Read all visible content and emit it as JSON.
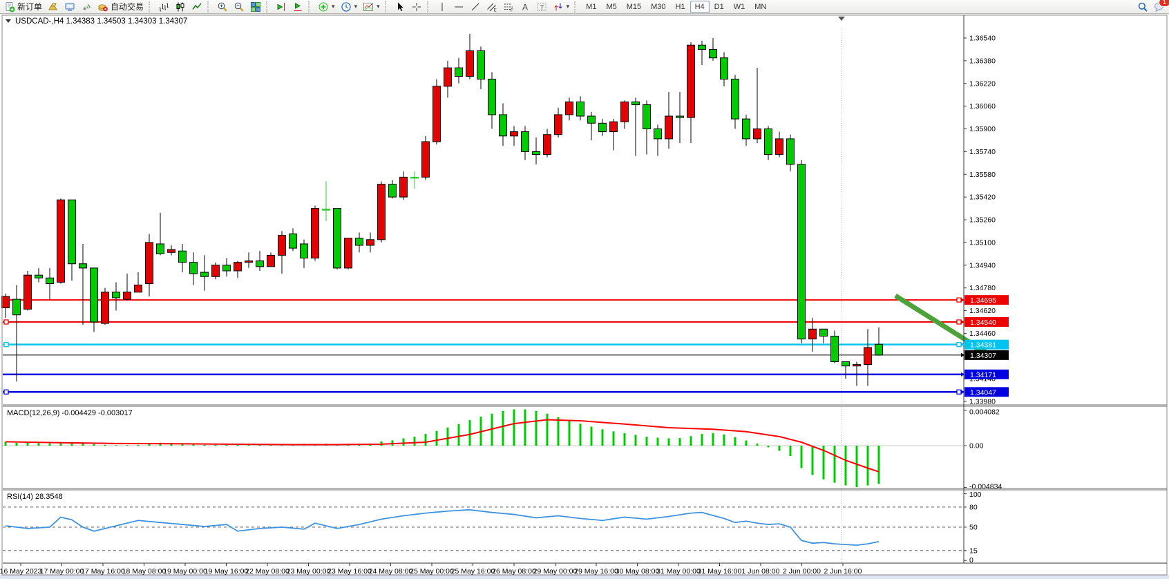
{
  "toolbar": {
    "items": [
      {
        "icon": "new-order",
        "label": "新订单"
      },
      {
        "icon": "gold-ingot"
      },
      {
        "icon": "terminal"
      },
      {
        "icon": "signal"
      },
      {
        "icon": "autotrade",
        "label": "自动交易"
      },
      {
        "sep": true
      },
      {
        "icon": "bar-chart"
      },
      {
        "icon": "candlestick-chart"
      },
      {
        "icon": "line-chart"
      },
      {
        "sep": true
      },
      {
        "icon": "zoom-in"
      },
      {
        "icon": "zoom-out"
      },
      {
        "icon": "tile-windows"
      },
      {
        "sep": true
      },
      {
        "icon": "chart-shift"
      },
      {
        "icon": "auto-scroll"
      },
      {
        "sep": true
      },
      {
        "icon": "indicators",
        "caret": true
      },
      {
        "icon": "periods",
        "caret": true
      },
      {
        "icon": "templates",
        "caret": true
      },
      {
        "sep": true
      },
      {
        "icon": "cursor"
      },
      {
        "icon": "crosshair"
      },
      {
        "sep": true
      },
      {
        "icon": "vertical-line"
      },
      {
        "icon": "horizontal-line"
      },
      {
        "icon": "trend-line"
      },
      {
        "icon": "equidistant-channel"
      },
      {
        "icon": "fibonacci"
      },
      {
        "icon": "text"
      },
      {
        "icon": "text-label"
      },
      {
        "icon": "arrows",
        "caret": true
      },
      {
        "sep": true
      }
    ],
    "timeframes": [
      "M1",
      "M5",
      "M15",
      "M30",
      "H1",
      "H4",
      "D1",
      "W1",
      "MN"
    ],
    "active_timeframe": "H4",
    "notification_count": "1"
  },
  "chart": {
    "symbol_title": "USDCAD-,H4",
    "ohlc_text": "1.34383 1.34503 1.34303 1.34307",
    "price_axis_ticks": [
      "1.36540",
      "1.36380",
      "1.36220",
      "1.36060",
      "1.35900",
      "1.35740",
      "1.35580",
      "1.35420",
      "1.35260",
      "1.35100",
      "1.34940",
      "1.34780",
      "1.34620",
      "1.34460",
      "1.34140",
      "1.33980"
    ],
    "price_badges": [
      {
        "price": 1.34695,
        "text": "1.34695",
        "color": "#ee0000"
      },
      {
        "price": 1.3454,
        "text": "1.34540",
        "color": "#ee0000"
      },
      {
        "price": 1.34381,
        "text": "1.34381",
        "color": "#00c3ee"
      },
      {
        "price": 1.34307,
        "text": "1.34307",
        "color": "#000000"
      },
      {
        "price": 1.34171,
        "text": "1.34171",
        "color": "#0000e0"
      },
      {
        "price": 1.34047,
        "text": "1.34047",
        "color": "#0000e0"
      }
    ],
    "hlines": [
      {
        "price": 1.34695,
        "color": "#ee0000",
        "width": 2,
        "markers": true
      },
      {
        "price": 1.3454,
        "color": "#ee0000",
        "width": 2,
        "markers": true
      },
      {
        "price": 1.34381,
        "color": "#00c3ee",
        "width": 2.5,
        "markers": true
      },
      {
        "price": 1.34307,
        "color": "#000000",
        "width": 1,
        "markers": false
      },
      {
        "price": 1.34171,
        "color": "#0000e0",
        "width": 2.5,
        "markers": false
      },
      {
        "price": 1.34047,
        "color": "#0000e0",
        "width": 2.5,
        "markers": true
      }
    ],
    "arrow_color": "#4da339",
    "time_axis_labels": [
      "16 May 2023",
      "17 May 00:00",
      "17 May 16:00",
      "18 May 08:00",
      "19 May 00:00",
      "19 May 16:00",
      "22 May 08:00",
      "23 May 00:00",
      "23 May 16:00",
      "24 May 08:00",
      "25 May 00:00",
      "25 May 16:00",
      "26 May 08:00",
      "29 May 00:00",
      "29 May 16:00",
      "30 May 08:00",
      "31 May 00:00",
      "31 May 16:00",
      "1 Jun 08:00",
      "2 Jun 00:00",
      "2 Jun 16:00"
    ]
  },
  "indicators": {
    "macd": {
      "label": "MACD(12,26,9) -0.004429 -0.003017",
      "axis_labels": [
        {
          "text": "0.004082",
          "value": 4.082
        },
        {
          "text": "0.00",
          "value": 0
        },
        {
          "text": "-0.004834",
          "value": -4.834
        }
      ],
      "histogram_color": "#00cc00",
      "signal_color": "#ff0000"
    },
    "rsi": {
      "label": "RSI(14) 28.3548",
      "levels": [
        {
          "text": "100",
          "value": 100,
          "dashed": false
        },
        {
          "text": "80",
          "value": 80,
          "dashed": true
        },
        {
          "text": "50",
          "value": 50,
          "dashed": true
        },
        {
          "text": "15",
          "value": 15,
          "dashed": true
        },
        {
          "text": "0",
          "value": 0,
          "dashed": false
        }
      ],
      "line_color": "#3f93e0"
    }
  },
  "chart_data": {
    "type": "candlestick",
    "symbol": "USDCAD",
    "period": "H4",
    "bull_color": "#e60000",
    "bear_color": "#00cc00",
    "doji_color": "#32cd32",
    "candles": [
      [
        1.3464,
        1.3474,
        1.3457,
        1.3472
      ],
      [
        1.347,
        1.348,
        1.3412,
        1.3459
      ],
      [
        1.3463,
        1.349,
        1.3462,
        1.3487
      ],
      [
        1.3487,
        1.3492,
        1.3482,
        1.3485
      ],
      [
        1.3485,
        1.3492,
        1.347,
        1.3481
      ],
      [
        1.3482,
        1.3541,
        1.3481,
        1.354
      ],
      [
        1.354,
        1.354,
        1.3483,
        1.3495
      ],
      [
        1.3495,
        1.3509,
        1.3452,
        1.3492
      ],
      [
        1.3492,
        1.3492,
        1.3447,
        1.3454
      ],
      [
        1.3453,
        1.3478,
        1.3452,
        1.3475
      ],
      [
        1.3475,
        1.3482,
        1.3462,
        1.3471
      ],
      [
        1.347,
        1.3488,
        1.3469,
        1.3475
      ],
      [
        1.3475,
        1.3489,
        1.3475,
        1.348
      ],
      [
        1.3481,
        1.3516,
        1.3472,
        1.351
      ],
      [
        1.3509,
        1.3531,
        1.3501,
        1.3502
      ],
      [
        1.3503,
        1.3508,
        1.3501,
        1.3505
      ],
      [
        1.3504,
        1.3509,
        1.3489,
        1.3496
      ],
      [
        1.3496,
        1.3503,
        1.348,
        1.3488
      ],
      [
        1.3489,
        1.3501,
        1.3476,
        1.3486
      ],
      [
        1.3486,
        1.3496,
        1.3484,
        1.3494
      ],
      [
        1.3494,
        1.3499,
        1.3486,
        1.349
      ],
      [
        1.349,
        1.3497,
        1.3485,
        1.3496
      ],
      [
        1.3496,
        1.3503,
        1.3492,
        1.3497
      ],
      [
        1.3497,
        1.3504,
        1.349,
        1.3493
      ],
      [
        1.3493,
        1.3503,
        1.3493,
        1.3501
      ],
      [
        1.3501,
        1.3518,
        1.3488,
        1.3515
      ],
      [
        1.3516,
        1.352,
        1.3504,
        1.3506
      ],
      [
        1.3509,
        1.3512,
        1.3492,
        1.3499
      ],
      [
        1.3499,
        1.3536,
        1.3497,
        1.3534
      ],
      [
        1.35335,
        1.3553,
        1.3525,
        1.35335
      ],
      [
        1.3534,
        1.3534,
        1.3491,
        1.3492
      ],
      [
        1.3492,
        1.3513,
        1.3491,
        1.3513
      ],
      [
        1.3513,
        1.3517,
        1.3503,
        1.3508
      ],
      [
        1.3508,
        1.3517,
        1.3503,
        1.3512
      ],
      [
        1.3512,
        1.3553,
        1.351,
        1.3551
      ],
      [
        1.3551,
        1.3554,
        1.3541,
        1.3542
      ],
      [
        1.3542,
        1.356,
        1.354,
        1.3556
      ],
      [
        1.3556,
        1.356,
        1.3548,
        1.3556
      ],
      [
        1.3556,
        1.3585,
        1.3554,
        1.3581
      ],
      [
        1.3581,
        1.3625,
        1.3579,
        1.362
      ],
      [
        1.362,
        1.3638,
        1.3612,
        1.3633
      ],
      [
        1.3633,
        1.364,
        1.3622,
        1.3627
      ],
      [
        1.3627,
        1.3657,
        1.3625,
        1.3645
      ],
      [
        1.3645,
        1.3648,
        1.3618,
        1.3625
      ],
      [
        1.3625,
        1.363,
        1.359,
        1.36
      ],
      [
        1.36,
        1.3608,
        1.3578,
        1.3585
      ],
      [
        1.3585,
        1.3592,
        1.3578,
        1.3588
      ],
      [
        1.3588,
        1.3592,
        1.3568,
        1.3574
      ],
      [
        1.3574,
        1.3584,
        1.3565,
        1.3572
      ],
      [
        1.3572,
        1.359,
        1.357,
        1.3586
      ],
      [
        1.3586,
        1.3605,
        1.3584,
        1.36
      ],
      [
        1.36,
        1.3612,
        1.3596,
        1.3609
      ],
      [
        1.3609,
        1.3613,
        1.3596,
        1.3599
      ],
      [
        1.3599,
        1.3602,
        1.3582,
        1.3594
      ],
      [
        1.3594,
        1.3597,
        1.3585,
        1.3588
      ],
      [
        1.3588,
        1.3597,
        1.3575,
        1.3595
      ],
      [
        1.3595,
        1.361,
        1.359,
        1.3609
      ],
      [
        1.3609,
        1.3612,
        1.3571,
        1.3607
      ],
      [
        1.3607,
        1.361,
        1.3572,
        1.359
      ],
      [
        1.359,
        1.3593,
        1.3571,
        1.3583
      ],
      [
        1.3583,
        1.3616,
        1.3576,
        1.3599
      ],
      [
        1.3599,
        1.3616,
        1.358,
        1.3598
      ],
      [
        1.3598,
        1.3651,
        1.358,
        1.3649
      ],
      [
        1.3649,
        1.3652,
        1.3635,
        1.3646
      ],
      [
        1.3646,
        1.3654,
        1.3638,
        1.364
      ],
      [
        1.364,
        1.3644,
        1.362,
        1.3625
      ],
      [
        1.3625,
        1.3628,
        1.359,
        1.3597
      ],
      [
        1.3597,
        1.36,
        1.3578,
        1.3583
      ],
      [
        1.3583,
        1.3633,
        1.358,
        1.359
      ],
      [
        1.359,
        1.3592,
        1.3568,
        1.3572
      ],
      [
        1.3572,
        1.3588,
        1.357,
        1.3583
      ],
      [
        1.3583,
        1.3586,
        1.356,
        1.3565
      ],
      [
        1.3565,
        1.3568,
        1.3439,
        1.3442
      ],
      [
        1.3442,
        1.3457,
        1.3433,
        1.3449
      ],
      [
        1.3449,
        1.3449,
        1.3439,
        1.3444
      ],
      [
        1.3444,
        1.3448,
        1.3425,
        1.3426
      ],
      [
        1.3426,
        1.3426,
        1.3414,
        1.3423
      ],
      [
        1.3423,
        1.3426,
        1.3409,
        1.3424
      ],
      [
        1.3424,
        1.3449,
        1.3409,
        1.3436
      ],
      [
        1.34383,
        1.34503,
        1.34303,
        1.34307
      ]
    ],
    "macd_histogram": [
      0.4,
      0.32,
      0.35,
      0.3,
      0.26,
      0.33,
      0.36,
      0.28,
      0.18,
      0.1,
      0.06,
      0.06,
      0.1,
      0.28,
      0.34,
      0.3,
      0.24,
      0.16,
      0.1,
      0.1,
      0.1,
      0.14,
      0.15,
      0.12,
      0.1,
      0.07,
      0.05,
      -0.05,
      0.1,
      0.22,
      0.1,
      0.12,
      0.16,
      0.22,
      0.5,
      0.62,
      0.85,
      1.05,
      1.35,
      1.7,
      2.1,
      2.5,
      2.95,
      3.35,
      3.7,
      4.0,
      4.2,
      4.2,
      4.0,
      3.7,
      3.3,
      2.9,
      2.55,
      2.2,
      1.9,
      1.65,
      1.45,
      1.25,
      1.05,
      0.92,
      0.85,
      0.88,
      1.1,
      1.35,
      1.45,
      1.3,
      1.0,
      0.6,
      0.25,
      -0.2,
      -0.6,
      -1.2,
      -2.6,
      -3.4,
      -3.9,
      -4.3,
      -4.6,
      -4.8,
      -4.6,
      -4.43
    ],
    "macd_signal_points": [
      [
        0,
        0.45
      ],
      [
        5,
        0.34
      ],
      [
        10,
        0.25
      ],
      [
        14,
        0.23
      ],
      [
        20,
        0.17
      ],
      [
        26,
        0.12
      ],
      [
        30,
        0.12
      ],
      [
        34,
        0.17
      ],
      [
        38,
        0.4
      ],
      [
        42,
        1.3
      ],
      [
        46,
        2.55
      ],
      [
        49,
        3.0
      ],
      [
        52,
        2.88
      ],
      [
        56,
        2.5
      ],
      [
        60,
        2.08
      ],
      [
        64,
        1.9
      ],
      [
        67,
        1.62
      ],
      [
        70,
        1.05
      ],
      [
        72,
        0.4
      ],
      [
        74,
        -0.55
      ],
      [
        76,
        -1.7
      ],
      [
        78,
        -2.6
      ],
      [
        79,
        -3.017
      ]
    ],
    "rsi_points": [
      [
        0,
        52
      ],
      [
        2,
        48
      ],
      [
        4,
        50
      ],
      [
        5,
        65
      ],
      [
        6,
        61
      ],
      [
        7,
        50
      ],
      [
        8,
        44
      ],
      [
        10,
        52
      ],
      [
        12,
        60
      ],
      [
        14,
        57
      ],
      [
        16,
        54
      ],
      [
        18,
        51
      ],
      [
        20,
        54
      ],
      [
        21,
        44
      ],
      [
        23,
        48
      ],
      [
        25,
        50
      ],
      [
        27,
        47
      ],
      [
        28,
        56
      ],
      [
        30,
        48
      ],
      [
        32,
        54
      ],
      [
        34,
        62
      ],
      [
        36,
        67
      ],
      [
        38,
        71
      ],
      [
        40,
        74
      ],
      [
        42,
        76
      ],
      [
        44,
        72
      ],
      [
        46,
        69
      ],
      [
        48,
        64
      ],
      [
        50,
        67
      ],
      [
        52,
        63
      ],
      [
        54,
        60
      ],
      [
        56,
        65
      ],
      [
        58,
        62
      ],
      [
        60,
        66
      ],
      [
        62,
        71
      ],
      [
        63,
        72
      ],
      [
        65,
        63
      ],
      [
        66,
        57
      ],
      [
        67,
        59
      ],
      [
        68,
        56
      ],
      [
        69,
        54
      ],
      [
        70,
        55
      ],
      [
        71,
        50
      ],
      [
        72,
        30
      ],
      [
        73,
        26
      ],
      [
        74,
        27
      ],
      [
        75,
        25
      ],
      [
        76,
        24
      ],
      [
        77,
        23
      ],
      [
        78,
        25
      ],
      [
        79,
        28.35
      ]
    ]
  }
}
